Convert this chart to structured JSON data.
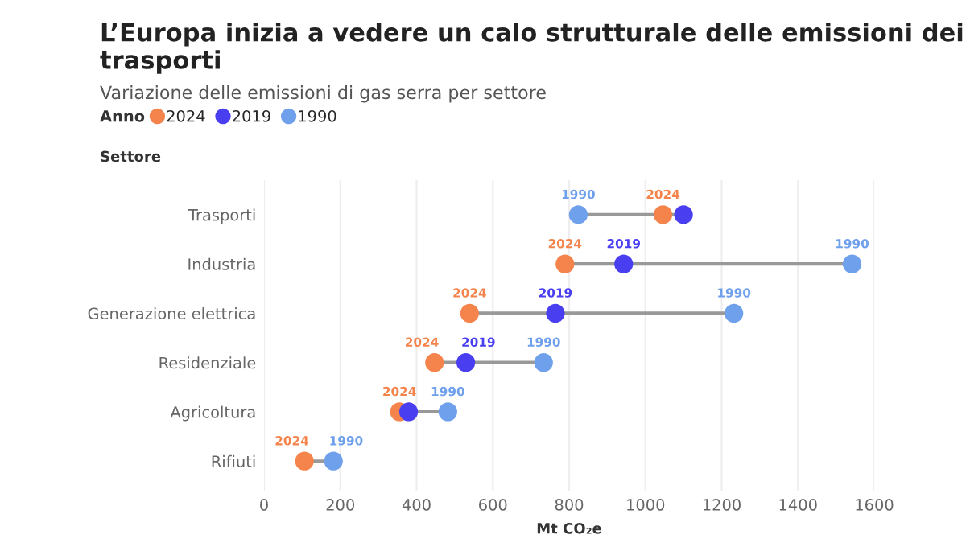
{
  "chart_data": {
    "type": "scatter",
    "orientation": "horizontal",
    "title": "L’Europa inizia a vedere un calo strutturale delle emissioni dei trasporti",
    "subtitle": "Variazione delle emissioni di gas serra per settore",
    "legend_title": "Anno",
    "legend": "top left",
    "ylabel": "Settore",
    "xlabel": "Mt CO₂e",
    "categories": [
      "Trasporti",
      "Industria",
      "Generazione elettrica",
      "Residenziale",
      "Agricoltura",
      "Rifiuti"
    ],
    "series": [
      {
        "name": "2024",
        "color": "#f4844c",
        "values": [
          1046,
          789,
          539,
          447,
          355,
          106
        ]
      },
      {
        "name": "2019",
        "color": "#4a3ff0",
        "values": [
          1100,
          943,
          764,
          529,
          379,
          null
        ]
      },
      {
        "name": "1990",
        "color": "#6fa0ec",
        "values": [
          824,
          1542,
          1232,
          733,
          482,
          182
        ]
      }
    ],
    "annotations": [
      {
        "text": "1990",
        "x": 824,
        "y": "Trasporti"
      },
      {
        "text": "2024",
        "x": 1046,
        "y": "Trasporti"
      },
      {
        "text": "2024",
        "x": 789,
        "y": "Industria"
      },
      {
        "text": "2019",
        "x": 943,
        "y": "Industria"
      },
      {
        "text": "1990",
        "x": 1542,
        "y": "Industria"
      },
      {
        "text": "2024",
        "x": 539,
        "y": "Generazione elettrica"
      },
      {
        "text": "2019",
        "x": 764,
        "y": "Generazione elettrica"
      },
      {
        "text": "1990",
        "x": 1232,
        "y": "Generazione elettrica"
      },
      {
        "text": "2024",
        "x": 447,
        "y": "Residenziale"
      },
      {
        "text": "2019",
        "x": 529,
        "y": "Residenziale"
      },
      {
        "text": "1990",
        "x": 733,
        "y": "Residenziale"
      },
      {
        "text": "2024",
        "x": 355,
        "y": "Agricoltura"
      },
      {
        "text": "1990",
        "x": 482,
        "y": "Agricoltura"
      },
      {
        "text": "2024",
        "x": 106,
        "y": "Rifiuti"
      },
      {
        "text": "1990",
        "x": 182,
        "y": "Rifiuti"
      }
    ],
    "xlim": [
      0,
      1600
    ],
    "xticks": [
      0,
      200,
      400,
      600,
      800,
      1000,
      1200,
      1400,
      1600
    ],
    "grid": "x",
    "marker": "circle"
  }
}
